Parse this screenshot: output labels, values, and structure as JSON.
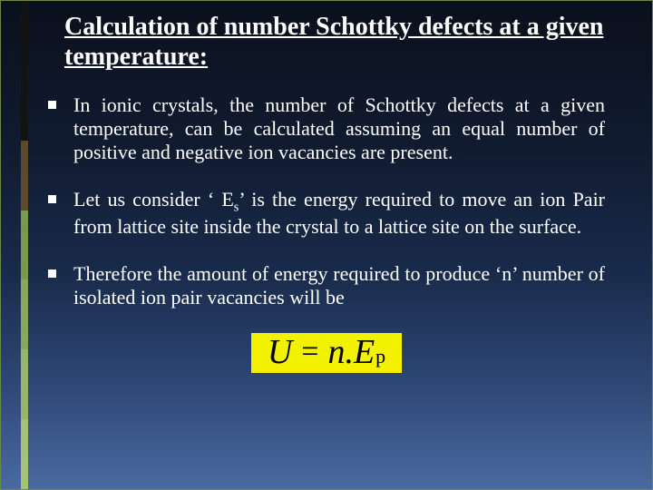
{
  "accent_colors": [
    "#121212",
    "#121212",
    "#5c4a2a",
    "#7a9a4a",
    "#8aa85a",
    "#98b668",
    "#a6c276"
  ],
  "title": "Calculation of number Schottky defects at a given temperature:",
  "bullets": [
    "In ionic crystals, the number of Schottky defects at a given temperature, can be calculated assuming an equal number of positive and negative ion vacancies are present.",
    "Let us consider ‘ E{sub:s}’ is the energy required to move an ion Pair from lattice site inside the crystal to a lattice site on the surface.",
    "Therefore the amount of energy required to produce ‘n’ number of isolated ion pair vacancies will be"
  ],
  "equation": {
    "lhs": "U",
    "rhs_var1": "n",
    "dot": ".",
    "rhs_var2": "E",
    "rhs_sub": "p",
    "bg_color": "#f2f200",
    "text_color": "#000000"
  },
  "colors": {
    "text": "#ffffff",
    "bg_top": "#0a0f1a",
    "bg_bottom": "#4a6aa0"
  },
  "font_family": "Times New Roman"
}
